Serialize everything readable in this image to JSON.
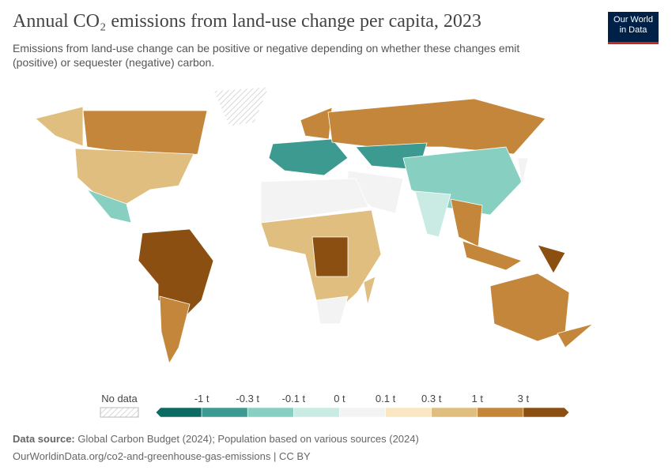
{
  "header": {
    "title": "Annual CO₂ emissions from land-use change per capita, 2023",
    "subtitle": "Emissions from land-use change can be positive or negative depending on whether these changes emit (positive) or sequester (negative) carbon.",
    "logo": [
      "Our World",
      "in Data"
    ]
  },
  "legend": {
    "no_data": "No data",
    "labels": [
      "-1 t",
      "-0.3 t",
      "-0.1 t",
      "0 t",
      "0.1 t",
      "0.3 t",
      "1 t",
      "3 t"
    ],
    "colors": [
      "#0d6b62",
      "#3d9a90",
      "#86cfc1",
      "#c9ebe3",
      "#f3f3f3",
      "#f8e7c2",
      "#dfbe7f",
      "#c3863a",
      "#8c4f12"
    ]
  },
  "footer": {
    "source_label": "Data source:",
    "source": "Global Carbon Budget (2024); Population based on various sources (2024)",
    "url": "OurWorldinData.org/co2-and-greenhouse-gas-emissions | CC BY"
  }
}
